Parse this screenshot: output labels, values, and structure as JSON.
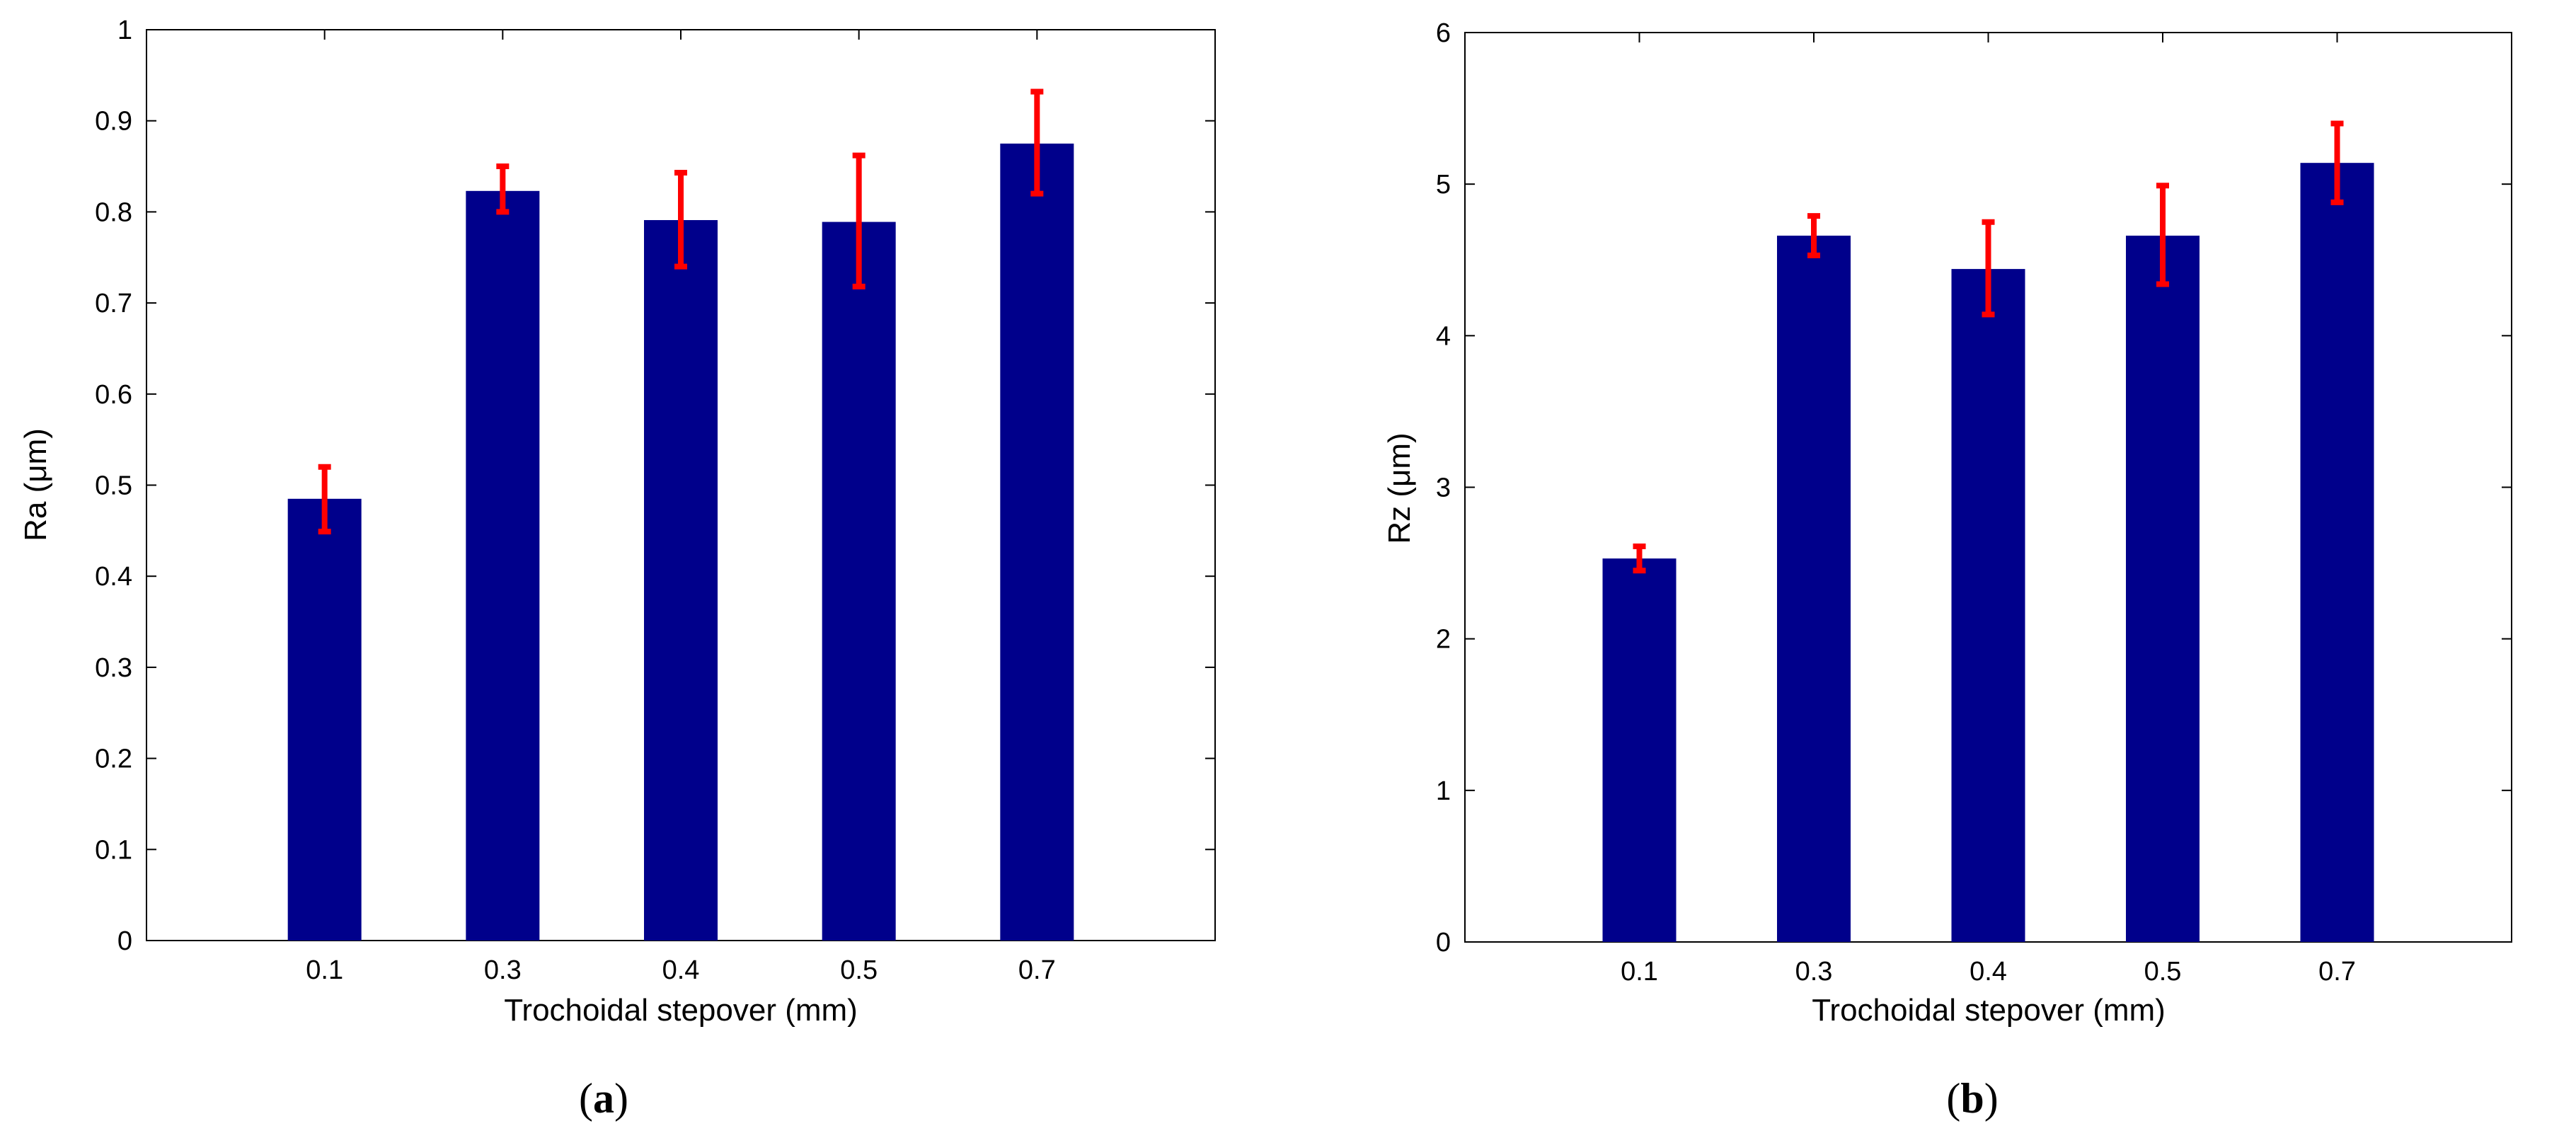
{
  "colors": {
    "bar": "#00008B",
    "error": "#FF0000",
    "axis": "#000000",
    "background": "#FFFFFF"
  },
  "chart_data": [
    {
      "type": "bar",
      "panel": "a",
      "panel_label": {
        "open": "(",
        "letter": "a",
        "close": ")"
      },
      "categories": [
        "0.1",
        "0.3",
        "0.4",
        "0.5",
        "0.7"
      ],
      "values": [
        0.485,
        0.823,
        0.791,
        0.789,
        0.875
      ],
      "error_low": [
        0.449,
        0.8,
        0.74,
        0.718,
        0.82
      ],
      "error_high": [
        0.52,
        0.85,
        0.843,
        0.862,
        0.932
      ],
      "xlabel": "Trochoidal stepover (mm)",
      "ylabel": "Ra (μm)",
      "ylim": [
        0,
        1
      ],
      "yticks": [
        "0",
        "0.1",
        "0.2",
        "0.3",
        "0.4",
        "0.5",
        "0.6",
        "0.7",
        "0.8",
        "0.9",
        "1"
      ],
      "xlim": [
        0,
        6
      ],
      "grid": false
    },
    {
      "type": "bar",
      "panel": "b",
      "panel_label": {
        "open": "(",
        "letter": "b",
        "close": ")"
      },
      "categories": [
        "0.1",
        "0.3",
        "0.4",
        "0.5",
        "0.7"
      ],
      "values": [
        2.53,
        4.66,
        4.44,
        4.66,
        5.14
      ],
      "error_low": [
        2.45,
        4.53,
        4.14,
        4.34,
        4.88
      ],
      "error_high": [
        2.61,
        4.79,
        4.75,
        4.99,
        5.4
      ],
      "xlabel": "Trochoidal stepover (mm)",
      "ylabel": "Rz (μm)",
      "ylim": [
        0,
        6
      ],
      "yticks": [
        "0",
        "1",
        "2",
        "3",
        "4",
        "5",
        "6"
      ],
      "xlim": [
        0,
        6
      ],
      "grid": false
    }
  ]
}
